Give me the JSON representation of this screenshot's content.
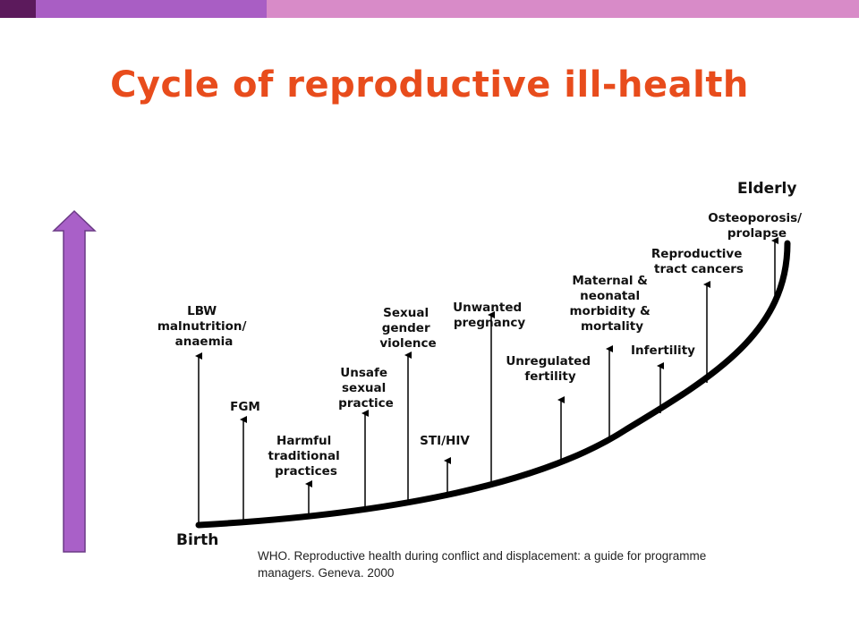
{
  "colors": {
    "bar_dark": "#5c1a5c",
    "bar_mid": "#a95ec4",
    "bar_light": "#d88bc8",
    "title": "#e84c1c",
    "arrow_fill": "#a960c8",
    "arrow_stroke": "#6b3a86",
    "curve": "#000000"
  },
  "slide": {
    "title": "Cycle of reproductive ill-health"
  },
  "diagram": {
    "start_label": "Birth",
    "end_label": "Elderly",
    "issues": [
      {
        "label_lines": [
          "LBW",
          "malnutrition/",
          "anaemia"
        ]
      },
      {
        "label_lines": [
          "FGM"
        ]
      },
      {
        "label_lines": [
          "Harmful",
          "traditional",
          "practices"
        ]
      },
      {
        "label_lines": [
          "Unsafe",
          "sexual",
          "practice"
        ]
      },
      {
        "label_lines": [
          "Sexual",
          "gender",
          "violence"
        ]
      },
      {
        "label_lines": [
          "STI/HIV"
        ]
      },
      {
        "label_lines": [
          "Unwanted",
          "pregnancy"
        ]
      },
      {
        "label_lines": [
          "Unregulated",
          "fertility"
        ]
      },
      {
        "label_lines": [
          "Maternal &",
          "neonatal",
          "morbidity &",
          "mortality"
        ]
      },
      {
        "label_lines": [
          "Infertility"
        ]
      },
      {
        "label_lines": [
          "Reproductive",
          "tract cancers"
        ]
      },
      {
        "label_lines": [
          "Osteoporosis/",
          "prolapse"
        ]
      }
    ]
  },
  "citation": {
    "line1": "WHO. Reproductive health during conflict and displacement: a guide for programme",
    "line2": "managers. Geneva. 2000"
  }
}
